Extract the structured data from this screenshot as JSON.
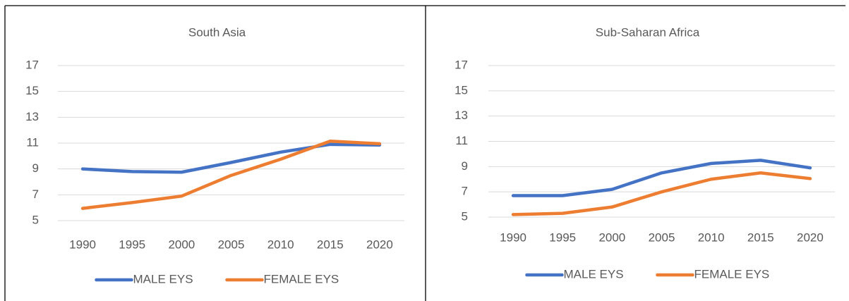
{
  "chart_data": [
    {
      "type": "line",
      "title": "South Asia",
      "categories": [
        "1990",
        "1995",
        "2000",
        "2005",
        "2010",
        "2015",
        "2020"
      ],
      "series": [
        {
          "name": "MALE EYS",
          "color": "#4472c4",
          "values": [
            9.0,
            8.8,
            8.75,
            9.5,
            10.3,
            10.9,
            10.85
          ]
        },
        {
          "name": "FEMALE EYS",
          "color": "#ed7d31",
          "values": [
            5.95,
            6.4,
            6.9,
            8.5,
            9.75,
            11.15,
            10.95
          ]
        }
      ],
      "ylim": [
        5,
        17
      ],
      "yticks": [
        5,
        7,
        9,
        11,
        13,
        15,
        17
      ],
      "grid": true,
      "legend": "bottom"
    },
    {
      "type": "line",
      "title": "Sub-Saharan Africa",
      "categories": [
        "1990",
        "1995",
        "2000",
        "2005",
        "2010",
        "2015",
        "2020"
      ],
      "series": [
        {
          "name": "MALE EYS",
          "color": "#4472c4",
          "values": [
            6.7,
            6.7,
            7.2,
            8.5,
            9.25,
            9.5,
            8.9
          ]
        },
        {
          "name": "FEMALE EYS",
          "color": "#ed7d31",
          "values": [
            5.2,
            5.3,
            5.8,
            7.0,
            8.0,
            8.5,
            8.05
          ]
        }
      ],
      "ylim": [
        5,
        17
      ],
      "yticks": [
        5,
        7,
        9,
        11,
        13,
        15,
        17
      ],
      "grid": true,
      "legend": "bottom"
    }
  ]
}
